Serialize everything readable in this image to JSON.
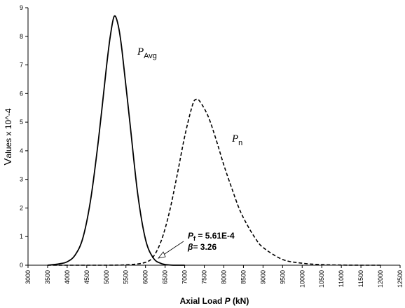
{
  "chart_data": {
    "type": "line",
    "xlabel_prefix": "Axial Load ",
    "xlabel_var": "P",
    "xlabel_suffix": " (kN)",
    "ylabel_initial": "V",
    "ylabel_rest": "alues x 10^-4",
    "xlim": [
      3000,
      12500
    ],
    "ylim": [
      0,
      9
    ],
    "x_ticks": [
      3000,
      3500,
      4000,
      4500,
      5000,
      5500,
      6000,
      6500,
      7000,
      7500,
      8000,
      8500,
      9000,
      9500,
      10000,
      10500,
      11000,
      11500,
      12000,
      12500
    ],
    "y_ticks": [
      0,
      1,
      2,
      3,
      4,
      5,
      6,
      7,
      8,
      9
    ],
    "series": [
      {
        "label_main": "P",
        "label_sub": "Avg",
        "style": "solid",
        "x": [
          3500,
          3800,
          4000,
          4200,
          4400,
          4600,
          4800,
          5000,
          5100,
          5200,
          5300,
          5400,
          5600,
          5800,
          6000,
          6200,
          6400,
          6600,
          6800,
          7000
        ],
        "y": [
          0.0,
          0.05,
          0.12,
          0.35,
          0.95,
          2.3,
          4.4,
          6.9,
          8.0,
          8.7,
          8.4,
          7.5,
          5.0,
          2.5,
          0.9,
          0.25,
          0.06,
          0.01,
          0.0,
          0.0
        ]
      },
      {
        "label_main": "P",
        "label_sub": "n",
        "style": "dashed",
        "x": [
          3500,
          5000,
          5600,
          6000,
          6200,
          6400,
          6600,
          6800,
          7000,
          7200,
          7300,
          7400,
          7600,
          7800,
          8000,
          8200,
          8400,
          8600,
          8800,
          9000,
          9500,
          10000,
          10500,
          11000,
          11500,
          12000
        ],
        "y": [
          0.0,
          0.0,
          0.02,
          0.1,
          0.3,
          0.85,
          1.8,
          3.1,
          4.5,
          5.6,
          5.8,
          5.7,
          5.2,
          4.4,
          3.5,
          2.7,
          1.95,
          1.4,
          0.95,
          0.62,
          0.2,
          0.07,
          0.02,
          0.005,
          0.0,
          0.0
        ]
      }
    ],
    "annotation": {
      "pf_var": "P",
      "pf_sub": "f",
      "pf_value": " = 5.61E-4",
      "beta_var": "β",
      "beta_value": "= 3.26"
    }
  }
}
